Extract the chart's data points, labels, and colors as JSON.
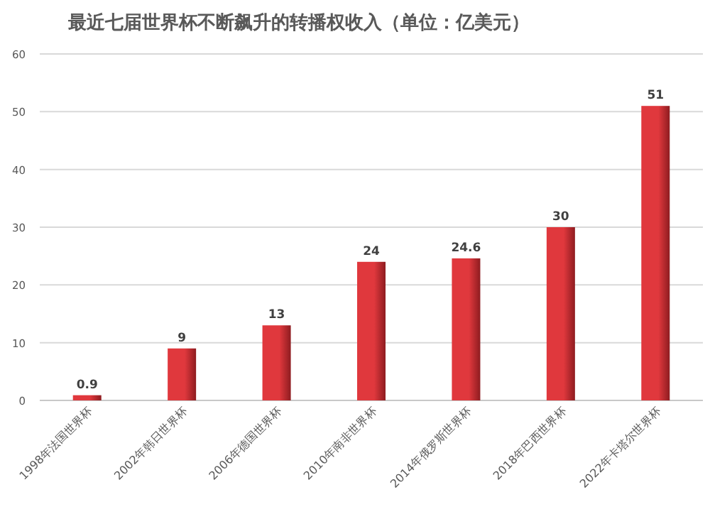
{
  "chart_data": {
    "type": "bar",
    "title": "最近七届世界杯不断飙升的转播权收入（单位：亿美元）",
    "categories": [
      "1998年法国世界杯",
      "2002年韩日世界杯",
      "2006年德国世界杯",
      "2010年南非世界杯",
      "2014年俄罗斯世界杯",
      "2018年巴西世界杯",
      "2022年卡塔尔世界杯"
    ],
    "values": [
      0.9,
      9,
      13,
      24,
      24.6,
      30,
      51
    ],
    "color": "#e0383d",
    "ylim": [
      0,
      60
    ],
    "yticks": [
      0,
      10,
      20,
      30,
      40,
      50,
      60
    ],
    "grid": "y",
    "data_labels": true
  }
}
